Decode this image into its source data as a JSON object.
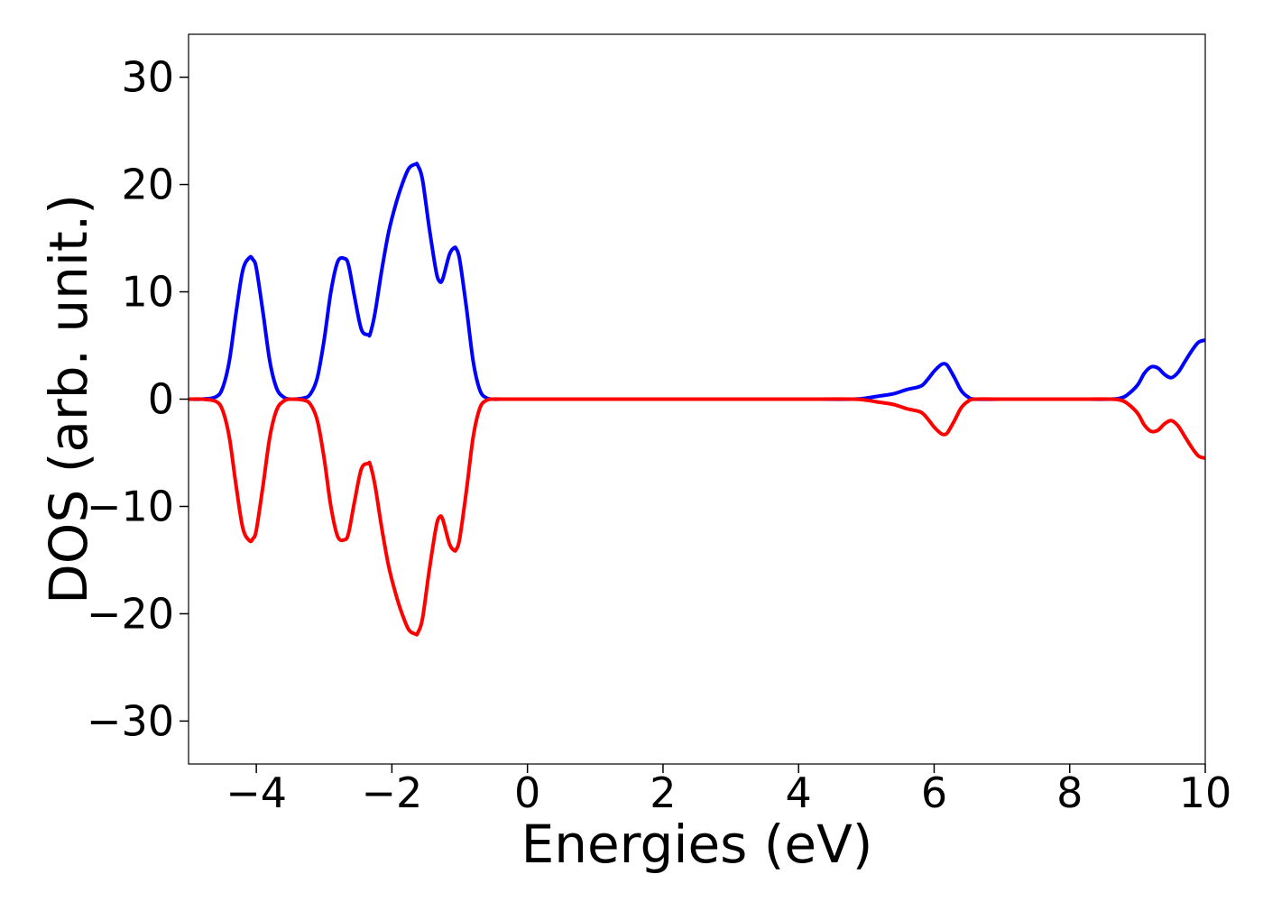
{
  "chart_data": {
    "type": "line",
    "title": "",
    "xlabel": "Energies (eV)",
    "ylabel": "DOS (arb. unit.)",
    "xlim": [
      -5,
      10
    ],
    "ylim": [
      -34,
      34
    ],
    "x_ticks": [
      -4,
      -2,
      0,
      2,
      4,
      6,
      8,
      10
    ],
    "x_tick_labels": [
      "−4",
      "−2",
      "0",
      "2",
      "4",
      "6",
      "8",
      "10"
    ],
    "y_ticks": [
      -30,
      -20,
      -10,
      0,
      10,
      20,
      30
    ],
    "y_tick_labels": [
      "−30",
      "−20",
      "−10",
      "0",
      "10",
      "20",
      "30"
    ],
    "grid": false,
    "legend": "none",
    "series": [
      {
        "color": "#0000ff",
        "x": [
          -5.0,
          -4.8,
          -4.6,
          -4.5,
          -4.4,
          -4.3,
          -4.2,
          -4.1,
          -4.05,
          -4.0,
          -3.9,
          -3.8,
          -3.7,
          -3.6,
          -3.5,
          -3.3,
          -3.2,
          -3.1,
          -3.0,
          -2.9,
          -2.8,
          -2.7,
          -2.64,
          -2.55,
          -2.45,
          -2.35,
          -2.32,
          -2.25,
          -2.15,
          -2.05,
          -1.95,
          -1.85,
          -1.75,
          -1.65,
          -1.62,
          -1.55,
          -1.45,
          -1.35,
          -1.3,
          -1.25,
          -1.15,
          -1.08,
          -1.05,
          -1.0,
          -0.9,
          -0.8,
          -0.7,
          -0.6,
          -0.5,
          -0.4,
          0.0,
          1.0,
          2.0,
          3.0,
          4.0,
          4.8,
          5.0,
          5.2,
          5.4,
          5.6,
          5.8,
          5.9,
          6.0,
          6.1,
          6.15,
          6.2,
          6.3,
          6.4,
          6.5,
          6.6,
          7.0,
          8.0,
          8.6,
          8.75,
          8.85,
          9.0,
          9.1,
          9.2,
          9.3,
          9.4,
          9.5,
          9.6,
          9.7,
          9.8,
          9.9,
          10.0
        ],
        "y": [
          0,
          0,
          0.2,
          1.0,
          3.5,
          8.0,
          12.0,
          13.2,
          13.0,
          12.2,
          8.0,
          3.5,
          1.0,
          0.2,
          0,
          0.1,
          0.5,
          2.0,
          5.5,
          10.0,
          12.8,
          13.1,
          12.5,
          9.5,
          6.5,
          6.0,
          6.1,
          8.0,
          12.0,
          15.5,
          18.0,
          20.0,
          21.5,
          21.9,
          21.8,
          20.5,
          16.0,
          12.0,
          11.0,
          11.2,
          13.5,
          14.1,
          14.0,
          13.0,
          8.5,
          3.5,
          0.8,
          0.1,
          0,
          0,
          0,
          0,
          0,
          0,
          0,
          0,
          0.1,
          0.3,
          0.5,
          0.9,
          1.2,
          1.8,
          2.6,
          3.2,
          3.3,
          3.1,
          2.0,
          0.8,
          0.2,
          0,
          0,
          0,
          0,
          0.1,
          0.4,
          1.3,
          2.4,
          3.0,
          2.9,
          2.3,
          2.0,
          2.5,
          3.5,
          4.5,
          5.3,
          5.5
        ]
      },
      {
        "color": "#ff0000",
        "x": [
          -5.0,
          -4.8,
          -4.6,
          -4.5,
          -4.4,
          -4.3,
          -4.2,
          -4.1,
          -4.05,
          -4.0,
          -3.9,
          -3.8,
          -3.7,
          -3.6,
          -3.5,
          -3.3,
          -3.2,
          -3.1,
          -3.0,
          -2.9,
          -2.8,
          -2.7,
          -2.64,
          -2.55,
          -2.45,
          -2.35,
          -2.32,
          -2.25,
          -2.15,
          -2.05,
          -1.95,
          -1.85,
          -1.75,
          -1.65,
          -1.62,
          -1.55,
          -1.45,
          -1.35,
          -1.3,
          -1.25,
          -1.15,
          -1.08,
          -1.05,
          -1.0,
          -0.9,
          -0.8,
          -0.7,
          -0.6,
          -0.5,
          -0.4,
          0.0,
          1.0,
          2.0,
          3.0,
          4.0,
          4.8,
          5.0,
          5.2,
          5.4,
          5.6,
          5.8,
          5.9,
          6.0,
          6.1,
          6.15,
          6.2,
          6.3,
          6.4,
          6.5,
          6.6,
          7.0,
          8.0,
          8.6,
          8.75,
          8.85,
          9.0,
          9.1,
          9.2,
          9.3,
          9.4,
          9.5,
          9.6,
          9.7,
          9.8,
          9.9,
          10.0
        ],
        "y": [
          0,
          0,
          -0.2,
          -1.0,
          -3.5,
          -8.0,
          -12.0,
          -13.2,
          -13.0,
          -12.2,
          -8.0,
          -3.5,
          -1.0,
          -0.2,
          0,
          -0.1,
          -0.5,
          -2.0,
          -5.5,
          -10.0,
          -12.8,
          -13.1,
          -12.5,
          -9.5,
          -6.5,
          -6.0,
          -6.1,
          -8.0,
          -12.0,
          -15.5,
          -18.0,
          -20.0,
          -21.5,
          -21.9,
          -21.8,
          -20.5,
          -16.0,
          -12.0,
          -11.0,
          -11.2,
          -13.5,
          -14.1,
          -14.0,
          -13.0,
          -8.5,
          -3.5,
          -0.8,
          -0.1,
          0,
          0,
          0,
          0,
          0,
          0,
          0,
          0,
          -0.1,
          -0.3,
          -0.5,
          -0.9,
          -1.2,
          -1.8,
          -2.6,
          -3.2,
          -3.3,
          -3.1,
          -2.0,
          -0.8,
          -0.2,
          0,
          0,
          0,
          0,
          -0.1,
          -0.4,
          -1.3,
          -2.4,
          -3.0,
          -2.9,
          -2.3,
          -2.0,
          -2.5,
          -3.5,
          -4.5,
          -5.3,
          -5.5
        ]
      }
    ]
  }
}
